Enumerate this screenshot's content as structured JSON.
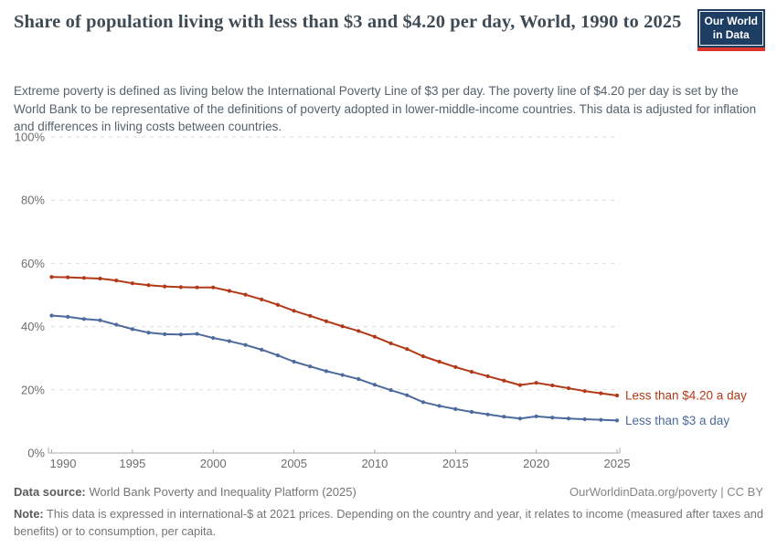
{
  "header": {
    "logo": {
      "line1": "Our World",
      "line2": "in Data",
      "bg_color": "#1d3d63",
      "bar_color": "#dc352c"
    }
  },
  "chart_data": {
    "type": "line",
    "title": "Share of population living with less than $3 and $4.20 per day, World, 1990 to 2025",
    "subtitle": "Extreme poverty is defined as living below the International Poverty Line of $3 per day. The poverty line of $4.20 per day is set by the World Bank to be representative of the definitions of poverty adopted in lower-middle-income countries. This data is adjusted for inflation and differences in living costs between countries.",
    "xlabel": "",
    "ylabel": "",
    "x": [
      1990,
      1991,
      1992,
      1993,
      1994,
      1995,
      1996,
      1997,
      1998,
      1999,
      2000,
      2001,
      2002,
      2003,
      2004,
      2005,
      2006,
      2007,
      2008,
      2009,
      2010,
      2011,
      2012,
      2013,
      2014,
      2015,
      2016,
      2017,
      2018,
      2019,
      2020,
      2021,
      2022,
      2023,
      2024,
      2025
    ],
    "series": [
      {
        "name": "Less than $4.20 a day",
        "color": "#b23917",
        "values": [
          55.7,
          55.6,
          55.4,
          55.2,
          54.6,
          53.7,
          53.1,
          52.7,
          52.5,
          52.4,
          52.4,
          51.3,
          50.1,
          48.6,
          46.9,
          45.0,
          43.4,
          41.7,
          40.1,
          38.6,
          36.8,
          34.7,
          32.9,
          30.6,
          28.9,
          27.2,
          25.7,
          24.3,
          22.9,
          21.5,
          22.2,
          21.4,
          20.5,
          19.6,
          18.9,
          18.2
        ]
      },
      {
        "name": "Less than $3 a day",
        "color": "#4c6a9c",
        "values": [
          43.5,
          43.1,
          42.4,
          42.0,
          40.6,
          39.2,
          38.1,
          37.6,
          37.5,
          37.7,
          36.4,
          35.4,
          34.2,
          32.7,
          30.9,
          28.9,
          27.4,
          25.9,
          24.7,
          23.4,
          21.6,
          19.9,
          18.3,
          16.1,
          14.9,
          13.9,
          13.0,
          12.2,
          11.5,
          10.9,
          11.6,
          11.2,
          10.9,
          10.7,
          10.5,
          10.3
        ]
      }
    ],
    "ylim": [
      0,
      100
    ],
    "yticks": [
      0,
      20,
      40,
      60,
      80,
      100
    ],
    "y_tick_suffix": "%",
    "xticks": [
      1990,
      1995,
      2000,
      2005,
      2010,
      2015,
      2020,
      2025
    ],
    "grid": "horizontal-dashed",
    "legend_position": "end-of-line-labels"
  },
  "footer": {
    "datasource_label": "Data source:",
    "datasource_value": " World Bank Poverty and Inequality Platform (2025)",
    "link": "OurWorldinData.org/poverty",
    "separator": " | ",
    "license": "CC BY",
    "note_label": "Note:",
    "note_value": " This data is expressed in international-$ at 2021 prices. Depending on the country and year, it relates to income (measured after taxes and benefits) or to consumption, per capita."
  }
}
